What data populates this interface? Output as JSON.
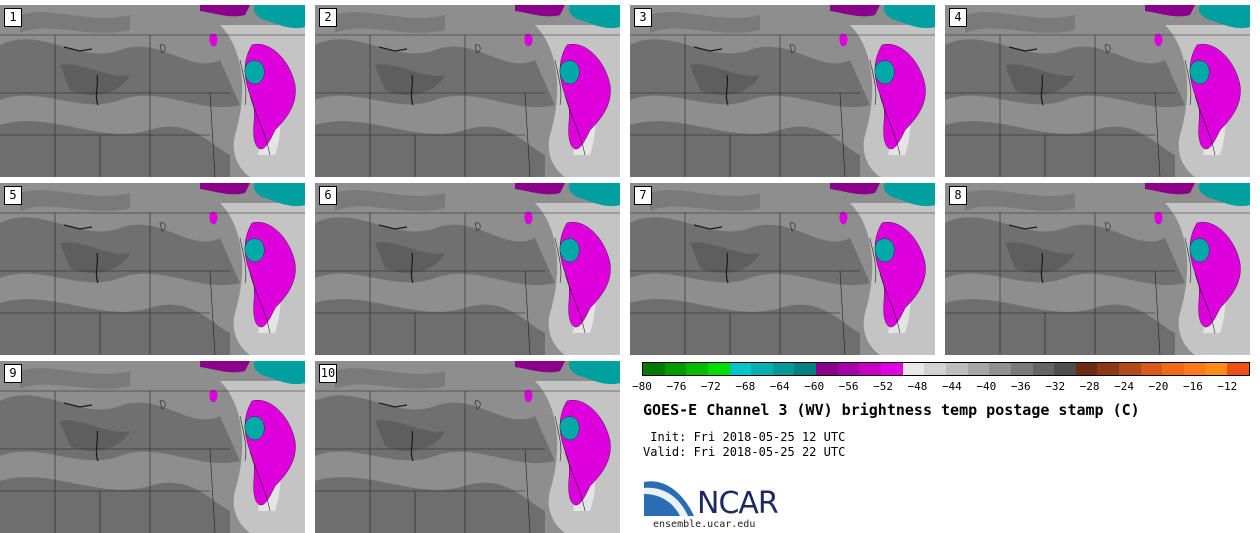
{
  "panels": [
    {
      "label": "1"
    },
    {
      "label": "2"
    },
    {
      "label": "3"
    },
    {
      "label": "4"
    },
    {
      "label": "5"
    },
    {
      "label": "6"
    },
    {
      "label": "7"
    },
    {
      "label": "8"
    },
    {
      "label": "9"
    },
    {
      "label": "10"
    }
  ],
  "colorbar": {
    "colors": [
      "#007a00",
      "#009a00",
      "#00bb00",
      "#00de00",
      "#00c8c8",
      "#00b0b0",
      "#009898",
      "#008080",
      "#8a008a",
      "#a800a8",
      "#c400c4",
      "#e000e0",
      "#e8e8e8",
      "#d2d2d2",
      "#bcbcbc",
      "#a6a6a6",
      "#909090",
      "#7a7a7a",
      "#646464",
      "#4e4e4e",
      "#6b2e14",
      "#8a3a14",
      "#b04a18",
      "#d85a1a",
      "#f06a1a",
      "#ff7a1a",
      "#ff8c1a",
      "#f05014"
    ],
    "ticks": [
      "−80",
      "−76",
      "−72",
      "−68",
      "−64",
      "−60",
      "−56",
      "−52",
      "−48",
      "−44",
      "−40",
      "−36",
      "−32",
      "−28",
      "−24",
      "−20",
      "−16",
      "−12"
    ]
  },
  "title": "GOES-E Channel 3 (WV) brightness temp postage stamp (C)",
  "init": " Init: Fri 2018-05-25 12 UTC",
  "valid": "Valid: Fri 2018-05-25 22 UTC",
  "logo": {
    "name": "NCAR",
    "url": "ensemble.ucar.edu"
  }
}
